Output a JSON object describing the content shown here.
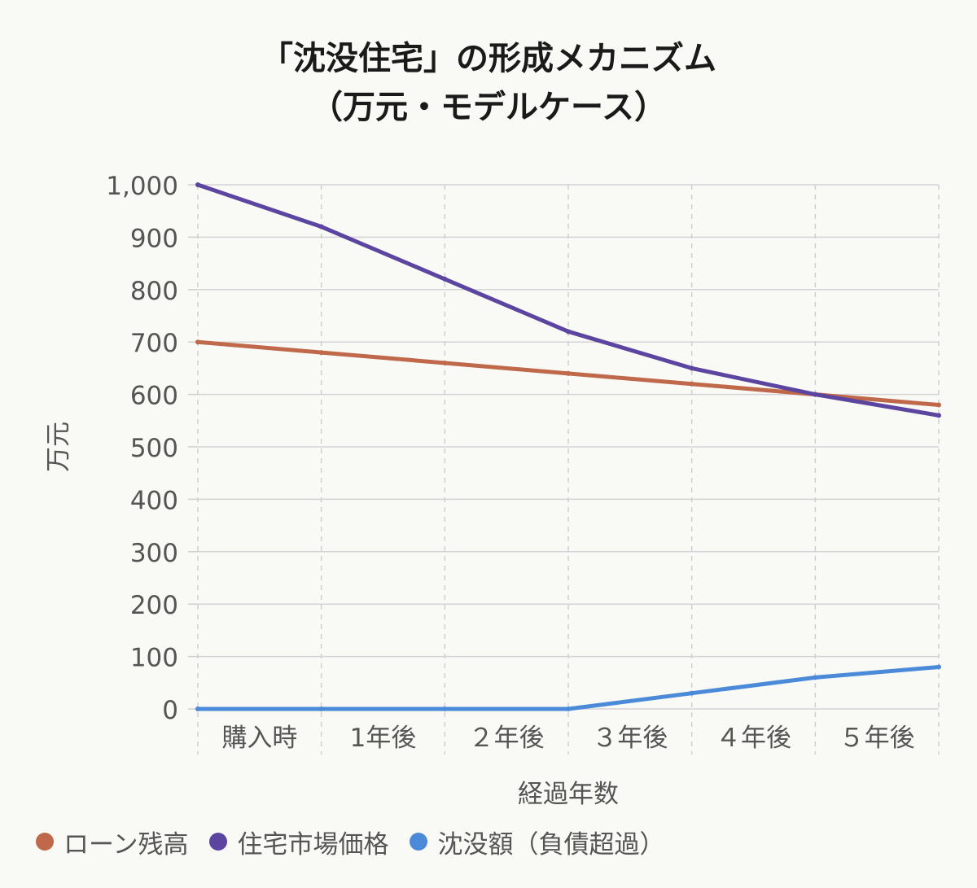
{
  "chart_data": {
    "type": "line",
    "title": "「沈没住宅」の形成メカニズム",
    "subtitle": "（万元・モデルケース）",
    "xlabel": "経過年数",
    "ylabel": "万元",
    "categories": [
      "購入時",
      "1年後",
      "２年後",
      "３年後",
      "４年後",
      "５年後",
      ""
    ],
    "ylim": [
      0,
      1000
    ],
    "yticks": [
      0,
      100,
      200,
      300,
      400,
      500,
      600,
      700,
      800,
      900,
      1000
    ],
    "ytick_labels": [
      "0",
      "100",
      "200",
      "300",
      "400",
      "500",
      "600",
      "700",
      "800",
      "900",
      "1,000"
    ],
    "grid": true,
    "legend_position": "bottom-left",
    "series": [
      {
        "name": "ローン残高",
        "color": "#c0684a",
        "values": [
          700,
          680,
          660,
          640,
          620,
          600,
          580
        ]
      },
      {
        "name": "住宅市場価格",
        "color": "#5b45a0",
        "values": [
          1000,
          920,
          820,
          720,
          650,
          600,
          560
        ]
      },
      {
        "name": "沈没額（負債超過）",
        "color": "#4a8ad8",
        "values": [
          0,
          0,
          0,
          0,
          30,
          60,
          80
        ]
      }
    ]
  }
}
